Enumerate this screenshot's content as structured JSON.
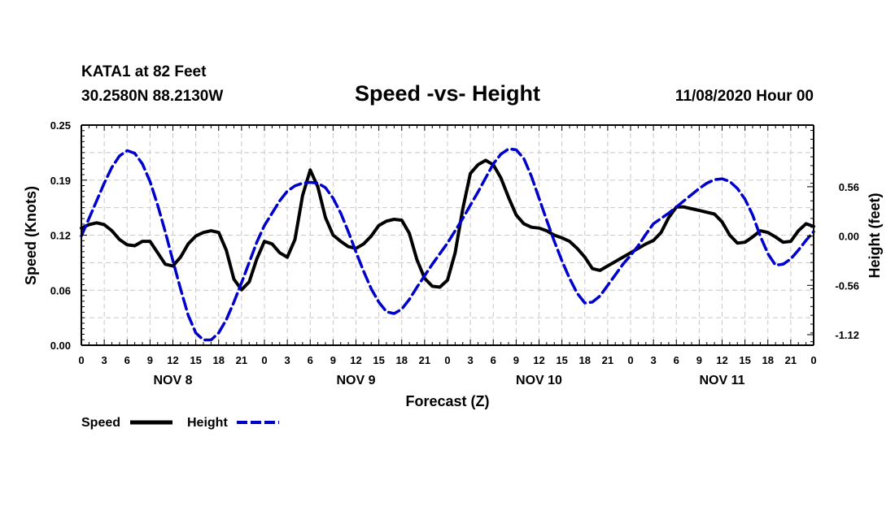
{
  "chart_data": {
    "type": "line",
    "station": "KATA1 at 82 Feet",
    "location": "30.2580N 88.2130W",
    "title": "Speed -vs- Height",
    "run": "11/08/2020 Hour 00",
    "xlabel": "Forecast (Z)",
    "ylabel_left": "Speed (Knots)",
    "ylabel_right": "Height (feet)",
    "xlim": [
      0,
      96
    ],
    "x_tick_labels": [
      "0",
      "3",
      "6",
      "9",
      "12",
      "15",
      "18",
      "21",
      "0",
      "3",
      "6",
      "9",
      "12",
      "15",
      "18",
      "21",
      "0",
      "3",
      "6",
      "9",
      "12",
      "15",
      "18",
      "21",
      "0",
      "3",
      "6",
      "9",
      "12",
      "15",
      "18",
      "21",
      "0"
    ],
    "day_labels": [
      {
        "label": "NOV 8",
        "hour": 12
      },
      {
        "label": "NOV 9",
        "hour": 36
      },
      {
        "label": "NOV 10",
        "hour": 60
      },
      {
        "label": "NOV 11",
        "hour": 84
      }
    ],
    "ylim_left": [
      0,
      0.25
    ],
    "yticks_left": [
      "0.00",
      "0.06",
      "0.12",
      "0.19",
      "0.25"
    ],
    "ytick_values_left": [
      0,
      0.0625,
      0.125,
      0.1875,
      0.25
    ],
    "ylim_right": [
      -1.24,
      1.26
    ],
    "yticks_right": [
      "-1.12",
      "-0.56",
      "0.00",
      "0.56"
    ],
    "ytick_values_right": [
      -1.12,
      -0.56,
      0,
      0.56
    ],
    "grid": true,
    "legend_position": "bottom-left",
    "series": [
      {
        "name": "Speed",
        "axis": "left",
        "color": "#000000",
        "style": "solid",
        "x": [
          0,
          1,
          2,
          3,
          4,
          5,
          6,
          7,
          8,
          9,
          10,
          11,
          12,
          13,
          14,
          15,
          16,
          17,
          18,
          19,
          20,
          21,
          22,
          23,
          24,
          25,
          26,
          27,
          28,
          29,
          30,
          31,
          32,
          33,
          34,
          35,
          36,
          37,
          38,
          39,
          40,
          41,
          42,
          43,
          44,
          45,
          46,
          47,
          48,
          49,
          50,
          51,
          52,
          53,
          54,
          55,
          56,
          57,
          58,
          59,
          60,
          61,
          62,
          63,
          64,
          65,
          66,
          67,
          68,
          69,
          70,
          71,
          72,
          73,
          74,
          75,
          76,
          77,
          78,
          79,
          80,
          81,
          82,
          83,
          84,
          85,
          86,
          87,
          88,
          89,
          90,
          91,
          92,
          93,
          94,
          95,
          96
        ],
        "y": [
          0.133,
          0.137,
          0.139,
          0.137,
          0.13,
          0.12,
          0.114,
          0.113,
          0.118,
          0.118,
          0.105,
          0.092,
          0.09,
          0.1,
          0.115,
          0.124,
          0.128,
          0.13,
          0.128,
          0.108,
          0.075,
          0.063,
          0.072,
          0.098,
          0.118,
          0.115,
          0.105,
          0.1,
          0.12,
          0.17,
          0.199,
          0.18,
          0.145,
          0.125,
          0.118,
          0.112,
          0.11,
          0.115,
          0.124,
          0.136,
          0.141,
          0.143,
          0.142,
          0.127,
          0.097,
          0.076,
          0.067,
          0.066,
          0.074,
          0.105,
          0.155,
          0.195,
          0.205,
          0.21,
          0.205,
          0.19,
          0.168,
          0.148,
          0.138,
          0.134,
          0.133,
          0.13,
          0.125,
          0.122,
          0.118,
          0.11,
          0.1,
          0.087,
          0.085,
          0.09,
          0.095,
          0.1,
          0.105,
          0.11,
          0.115,
          0.119,
          0.128,
          0.145,
          0.157,
          0.157,
          0.155,
          0.153,
          0.151,
          0.149,
          0.14,
          0.125,
          0.116,
          0.117,
          0.123,
          0.13,
          0.128,
          0.123,
          0.117,
          0.118,
          0.13,
          0.138,
          0.135
        ]
      },
      {
        "name": "Height",
        "axis": "right",
        "color": "#0000cc",
        "style": "dashed",
        "x": [
          0,
          1,
          2,
          3,
          4,
          5,
          6,
          7,
          8,
          9,
          10,
          11,
          12,
          13,
          14,
          15,
          16,
          17,
          18,
          19,
          20,
          21,
          22,
          23,
          24,
          25,
          26,
          27,
          28,
          29,
          30,
          31,
          32,
          33,
          34,
          35,
          36,
          37,
          38,
          39,
          40,
          41,
          42,
          43,
          44,
          45,
          46,
          47,
          48,
          49,
          50,
          51,
          52,
          53,
          54,
          55,
          56,
          57,
          58,
          59,
          60,
          61,
          62,
          63,
          64,
          65,
          66,
          67,
          68,
          69,
          70,
          71,
          72,
          73,
          74,
          75,
          76,
          77,
          78,
          79,
          80,
          81,
          82,
          83,
          84,
          85,
          86,
          87,
          88,
          89,
          90,
          91,
          92,
          93,
          94,
          95,
          96
        ],
        "y": [
          0.0,
          0.2,
          0.4,
          0.6,
          0.78,
          0.91,
          0.97,
          0.94,
          0.82,
          0.62,
          0.35,
          0.05,
          -0.28,
          -0.6,
          -0.9,
          -1.1,
          -1.18,
          -1.18,
          -1.1,
          -0.95,
          -0.75,
          -0.53,
          -0.3,
          -0.07,
          0.12,
          0.26,
          0.4,
          0.51,
          0.57,
          0.6,
          0.61,
          0.6,
          0.55,
          0.43,
          0.26,
          0.05,
          -0.18,
          -0.4,
          -0.6,
          -0.75,
          -0.86,
          -0.88,
          -0.83,
          -0.72,
          -0.58,
          -0.45,
          -0.32,
          -0.2,
          -0.08,
          0.06,
          0.2,
          0.35,
          0.5,
          0.66,
          0.82,
          0.93,
          0.99,
          0.98,
          0.88,
          0.68,
          0.43,
          0.18,
          -0.06,
          -0.28,
          -0.48,
          -0.65,
          -0.76,
          -0.75,
          -0.68,
          -0.56,
          -0.44,
          -0.32,
          -0.22,
          -0.11,
          0.02,
          0.14,
          0.2,
          0.26,
          0.33,
          0.4,
          0.47,
          0.54,
          0.6,
          0.64,
          0.65,
          0.62,
          0.54,
          0.42,
          0.24,
          0.0,
          -0.2,
          -0.33,
          -0.32,
          -0.26,
          -0.16,
          -0.05,
          0.05
        ]
      }
    ]
  }
}
